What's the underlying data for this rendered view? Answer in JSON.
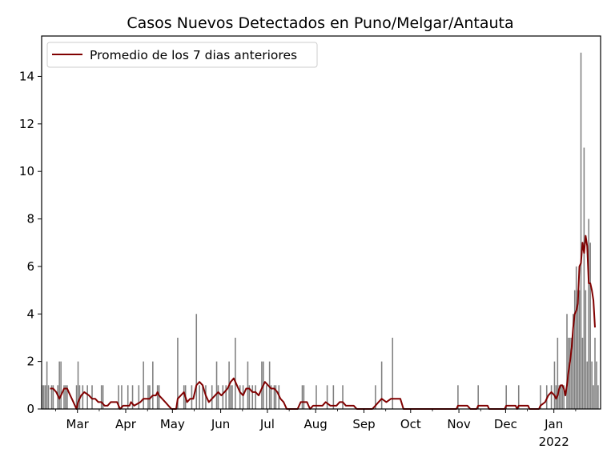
{
  "chart_data": {
    "type": "bar",
    "title": "Casos Nuevos Detectados en Puno/Melgar/Antauta",
    "xlabel": "",
    "ylabel": "",
    "x_start": "2021-02-06",
    "x_end": "2022-01-31",
    "ylim": [
      0,
      15.7
    ],
    "yticks": [
      0,
      2,
      4,
      6,
      8,
      10,
      12,
      14
    ],
    "xticks": [
      {
        "date": "2021-03-01",
        "label": "Mar"
      },
      {
        "date": "2021-04-01",
        "label": "Apr"
      },
      {
        "date": "2021-05-01",
        "label": "May"
      },
      {
        "date": "2021-06-01",
        "label": "Jun"
      },
      {
        "date": "2021-07-01",
        "label": "Jul"
      },
      {
        "date": "2021-08-01",
        "label": "Aug"
      },
      {
        "date": "2021-09-01",
        "label": "Sep"
      },
      {
        "date": "2021-10-01",
        "label": "Oct"
      },
      {
        "date": "2021-11-01",
        "label": "Nov"
      },
      {
        "date": "2021-12-01",
        "label": "Dec"
      },
      {
        "date": "2022-01-01",
        "label": "Jan"
      }
    ],
    "year_label": "2022",
    "grid": false,
    "legend_position": "top-left",
    "series": [
      {
        "name": "Casos Nuevos Detectados",
        "kind": "bar",
        "color": "#808080",
        "points": [
          [
            "2021-02-06",
            1
          ],
          [
            "2021-02-07",
            1
          ],
          [
            "2021-02-08",
            1
          ],
          [
            "2021-02-09",
            2
          ],
          [
            "2021-02-10",
            1
          ],
          [
            "2021-02-12",
            1
          ],
          [
            "2021-02-13",
            1
          ],
          [
            "2021-02-16",
            1
          ],
          [
            "2021-02-17",
            2
          ],
          [
            "2021-02-18",
            2
          ],
          [
            "2021-02-20",
            1
          ],
          [
            "2021-02-21",
            1
          ],
          [
            "2021-02-22",
            1
          ],
          [
            "2021-02-28",
            1
          ],
          [
            "2021-03-01",
            2
          ],
          [
            "2021-03-02",
            1
          ],
          [
            "2021-03-04",
            1
          ],
          [
            "2021-03-07",
            1
          ],
          [
            "2021-03-10",
            1
          ],
          [
            "2021-03-16",
            1
          ],
          [
            "2021-03-17",
            1
          ],
          [
            "2021-03-27",
            1
          ],
          [
            "2021-03-29",
            1
          ],
          [
            "2021-04-02",
            1
          ],
          [
            "2021-04-05",
            1
          ],
          [
            "2021-04-09",
            1
          ],
          [
            "2021-04-12",
            2
          ],
          [
            "2021-04-15",
            1
          ],
          [
            "2021-04-16",
            1
          ],
          [
            "2021-04-18",
            2
          ],
          [
            "2021-04-21",
            1
          ],
          [
            "2021-04-22",
            1
          ],
          [
            "2021-05-04",
            3
          ],
          [
            "2021-05-08",
            1
          ],
          [
            "2021-05-09",
            1
          ],
          [
            "2021-05-13",
            1
          ],
          [
            "2021-05-16",
            4
          ],
          [
            "2021-05-18",
            1
          ],
          [
            "2021-05-20",
            1
          ],
          [
            "2021-05-22",
            1
          ],
          [
            "2021-05-26",
            1
          ],
          [
            "2021-05-29",
            2
          ],
          [
            "2021-05-30",
            1
          ],
          [
            "2021-06-02",
            1
          ],
          [
            "2021-06-04",
            1
          ],
          [
            "2021-06-06",
            2
          ],
          [
            "2021-06-07",
            1
          ],
          [
            "2021-06-08",
            1
          ],
          [
            "2021-06-10",
            3
          ],
          [
            "2021-06-13",
            1
          ],
          [
            "2021-06-15",
            1
          ],
          [
            "2021-06-18",
            2
          ],
          [
            "2021-06-19",
            1
          ],
          [
            "2021-06-21",
            1
          ],
          [
            "2021-06-23",
            1
          ],
          [
            "2021-06-27",
            2
          ],
          [
            "2021-06-28",
            2
          ],
          [
            "2021-06-30",
            1
          ],
          [
            "2021-07-02",
            2
          ],
          [
            "2021-07-03",
            1
          ],
          [
            "2021-07-05",
            1
          ],
          [
            "2021-07-06",
            1
          ],
          [
            "2021-07-08",
            1
          ],
          [
            "2021-07-23",
            1
          ],
          [
            "2021-07-24",
            1
          ],
          [
            "2021-08-01",
            1
          ],
          [
            "2021-08-08",
            1
          ],
          [
            "2021-08-12",
            1
          ],
          [
            "2021-08-18",
            1
          ],
          [
            "2021-09-08",
            1
          ],
          [
            "2021-09-12",
            2
          ],
          [
            "2021-09-19",
            3
          ],
          [
            "2021-10-31",
            1
          ],
          [
            "2021-11-13",
            1
          ],
          [
            "2021-12-01",
            1
          ],
          [
            "2021-12-09",
            1
          ],
          [
            "2021-12-23",
            1
          ],
          [
            "2021-12-27",
            1
          ],
          [
            "2021-12-30",
            1
          ],
          [
            "2022-01-01",
            2
          ],
          [
            "2022-01-02",
            1
          ],
          [
            "2022-01-03",
            3
          ],
          [
            "2022-01-04",
            1
          ],
          [
            "2022-01-05",
            1
          ],
          [
            "2022-01-06",
            1
          ],
          [
            "2022-01-07",
            1
          ],
          [
            "2022-01-09",
            4
          ],
          [
            "2022-01-10",
            3
          ],
          [
            "2022-01-11",
            3
          ],
          [
            "2022-01-12",
            3
          ],
          [
            "2022-01-13",
            4
          ],
          [
            "2022-01-14",
            5
          ],
          [
            "2022-01-15",
            6
          ],
          [
            "2022-01-16",
            5
          ],
          [
            "2022-01-17",
            5
          ],
          [
            "2022-01-18",
            15
          ],
          [
            "2022-01-19",
            3
          ],
          [
            "2022-01-20",
            11
          ],
          [
            "2022-01-21",
            5
          ],
          [
            "2022-01-22",
            2
          ],
          [
            "2022-01-23",
            8
          ],
          [
            "2022-01-24",
            7
          ],
          [
            "2022-01-25",
            2
          ],
          [
            "2022-01-26",
            1
          ],
          [
            "2022-01-27",
            3
          ],
          [
            "2022-01-28",
            2
          ],
          [
            "2022-01-29",
            1
          ]
        ]
      },
      {
        "name": "Promedio de los 7 dias anteriores",
        "kind": "line",
        "color": "#800000",
        "points": [
          [
            "2021-02-11",
            0.86
          ],
          [
            "2021-02-13",
            0.86
          ],
          [
            "2021-02-15",
            0.71
          ],
          [
            "2021-02-16",
            0.57
          ],
          [
            "2021-02-17",
            0.43
          ],
          [
            "2021-02-18",
            0.57
          ],
          [
            "2021-02-19",
            0.71
          ],
          [
            "2021-02-20",
            0.86
          ],
          [
            "2021-02-22",
            0.86
          ],
          [
            "2021-02-23",
            0.71
          ],
          [
            "2021-02-25",
            0.43
          ],
          [
            "2021-02-26",
            0.29
          ],
          [
            "2021-02-27",
            0.14
          ],
          [
            "2021-02-28",
            0.0
          ],
          [
            "2021-03-01",
            0.29
          ],
          [
            "2021-03-02",
            0.43
          ],
          [
            "2021-03-03",
            0.57
          ],
          [
            "2021-03-05",
            0.71
          ],
          [
            "2021-03-08",
            0.57
          ],
          [
            "2021-03-10",
            0.43
          ],
          [
            "2021-03-12",
            0.43
          ],
          [
            "2021-03-14",
            0.29
          ],
          [
            "2021-03-16",
            0.29
          ],
          [
            "2021-03-18",
            0.14
          ],
          [
            "2021-03-20",
            0.14
          ],
          [
            "2021-03-22",
            0.29
          ],
          [
            "2021-03-26",
            0.29
          ],
          [
            "2021-03-28",
            0.0
          ],
          [
            "2021-03-30",
            0.14
          ],
          [
            "2021-04-03",
            0.14
          ],
          [
            "2021-04-04",
            0.29
          ],
          [
            "2021-04-06",
            0.14
          ],
          [
            "2021-04-10",
            0.29
          ],
          [
            "2021-04-12",
            0.43
          ],
          [
            "2021-04-16",
            0.43
          ],
          [
            "2021-04-18",
            0.57
          ],
          [
            "2021-04-20",
            0.57
          ],
          [
            "2021-04-21",
            0.71
          ],
          [
            "2021-04-22",
            0.57
          ],
          [
            "2021-04-24",
            0.43
          ],
          [
            "2021-04-26",
            0.29
          ],
          [
            "2021-04-28",
            0.14
          ],
          [
            "2021-04-30",
            0.0
          ],
          [
            "2021-05-03",
            0.0
          ],
          [
            "2021-05-04",
            0.43
          ],
          [
            "2021-05-06",
            0.57
          ],
          [
            "2021-05-08",
            0.71
          ],
          [
            "2021-05-10",
            0.29
          ],
          [
            "2021-05-12",
            0.43
          ],
          [
            "2021-05-14",
            0.43
          ],
          [
            "2021-05-16",
            1.0
          ],
          [
            "2021-05-18",
            1.14
          ],
          [
            "2021-05-20",
            1.0
          ],
          [
            "2021-05-22",
            0.57
          ],
          [
            "2021-05-24",
            0.29
          ],
          [
            "2021-05-26",
            0.43
          ],
          [
            "2021-05-28",
            0.57
          ],
          [
            "2021-05-30",
            0.71
          ],
          [
            "2021-06-01",
            0.57
          ],
          [
            "2021-06-03",
            0.71
          ],
          [
            "2021-06-05",
            0.86
          ],
          [
            "2021-06-07",
            1.14
          ],
          [
            "2021-06-09",
            1.29
          ],
          [
            "2021-06-11",
            1.0
          ],
          [
            "2021-06-13",
            0.71
          ],
          [
            "2021-06-15",
            0.57
          ],
          [
            "2021-06-17",
            0.86
          ],
          [
            "2021-06-19",
            0.86
          ],
          [
            "2021-06-21",
            0.71
          ],
          [
            "2021-06-23",
            0.71
          ],
          [
            "2021-06-25",
            0.57
          ],
          [
            "2021-06-27",
            0.86
          ],
          [
            "2021-06-29",
            1.14
          ],
          [
            "2021-07-01",
            1.0
          ],
          [
            "2021-07-03",
            0.86
          ],
          [
            "2021-07-05",
            0.86
          ],
          [
            "2021-07-07",
            0.71
          ],
          [
            "2021-07-09",
            0.43
          ],
          [
            "2021-07-11",
            0.29
          ],
          [
            "2021-07-13",
            0.0
          ],
          [
            "2021-07-20",
            0.0
          ],
          [
            "2021-07-22",
            0.29
          ],
          [
            "2021-07-26",
            0.29
          ],
          [
            "2021-07-28",
            0.0
          ],
          [
            "2021-07-30",
            0.14
          ],
          [
            "2021-08-05",
            0.14
          ],
          [
            "2021-08-07",
            0.29
          ],
          [
            "2021-08-10",
            0.14
          ],
          [
            "2021-08-14",
            0.14
          ],
          [
            "2021-08-16",
            0.29
          ],
          [
            "2021-08-18",
            0.29
          ],
          [
            "2021-08-20",
            0.14
          ],
          [
            "2021-08-25",
            0.14
          ],
          [
            "2021-08-27",
            0.0
          ],
          [
            "2021-09-06",
            0.0
          ],
          [
            "2021-09-08",
            0.14
          ],
          [
            "2021-09-10",
            0.29
          ],
          [
            "2021-09-12",
            0.43
          ],
          [
            "2021-09-15",
            0.29
          ],
          [
            "2021-09-18",
            0.43
          ],
          [
            "2021-09-24",
            0.43
          ],
          [
            "2021-09-26",
            0.0
          ],
          [
            "2021-10-30",
            0.0
          ],
          [
            "2021-10-31",
            0.14
          ],
          [
            "2021-11-06",
            0.14
          ],
          [
            "2021-11-08",
            0.0
          ],
          [
            "2021-11-12",
            0.0
          ],
          [
            "2021-11-13",
            0.14
          ],
          [
            "2021-11-19",
            0.14
          ],
          [
            "2021-11-20",
            0.0
          ],
          [
            "2021-11-30",
            0.0
          ],
          [
            "2021-12-01",
            0.14
          ],
          [
            "2021-12-07",
            0.14
          ],
          [
            "2021-12-08",
            0.0
          ],
          [
            "2021-12-09",
            0.14
          ],
          [
            "2021-12-15",
            0.14
          ],
          [
            "2021-12-16",
            0.0
          ],
          [
            "2021-12-22",
            0.0
          ],
          [
            "2021-12-23",
            0.14
          ],
          [
            "2021-12-26",
            0.29
          ],
          [
            "2021-12-28",
            0.57
          ],
          [
            "2021-12-30",
            0.71
          ],
          [
            "2022-01-01",
            0.57
          ],
          [
            "2022-01-02",
            0.43
          ],
          [
            "2022-01-03",
            0.57
          ],
          [
            "2022-01-04",
            0.86
          ],
          [
            "2022-01-05",
            1.0
          ],
          [
            "2022-01-06",
            1.0
          ],
          [
            "2022-01-07",
            0.86
          ],
          [
            "2022-01-08",
            0.57
          ],
          [
            "2022-01-09",
            1.0
          ],
          [
            "2022-01-10",
            1.57
          ],
          [
            "2022-01-11",
            2.0
          ],
          [
            "2022-01-12",
            2.57
          ],
          [
            "2022-01-13",
            3.43
          ],
          [
            "2022-01-14",
            4.0
          ],
          [
            "2022-01-15",
            4.14
          ],
          [
            "2022-01-16",
            4.43
          ],
          [
            "2022-01-17",
            6.0
          ],
          [
            "2022-01-18",
            6.14
          ],
          [
            "2022-01-19",
            7.0
          ],
          [
            "2022-01-20",
            6.57
          ],
          [
            "2022-01-21",
            7.29
          ],
          [
            "2022-01-22",
            6.86
          ],
          [
            "2022-01-23",
            5.29
          ],
          [
            "2022-01-24",
            5.29
          ],
          [
            "2022-01-25",
            5.0
          ],
          [
            "2022-01-26",
            4.57
          ],
          [
            "2022-01-27",
            3.43
          ]
        ]
      }
    ]
  }
}
